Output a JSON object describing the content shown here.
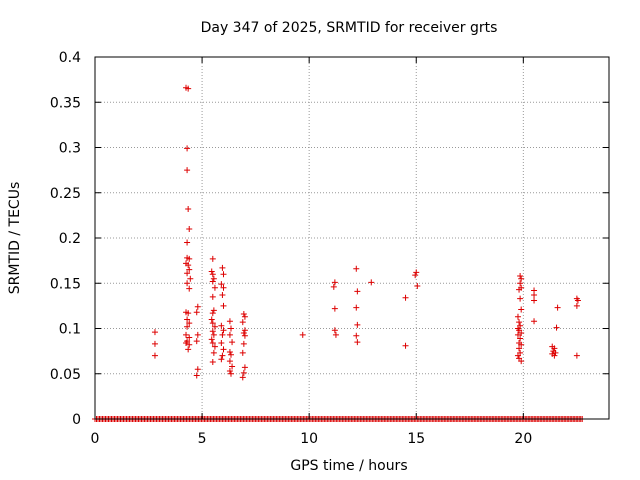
{
  "chart_data": {
    "type": "scatter",
    "title": "Day 347 of 2025, SRMTID for receiver grts",
    "xlabel": "GPS time / hours",
    "ylabel": "SRMTID / TECUs",
    "xlim": [
      0,
      24
    ],
    "ylim": [
      0,
      0.4
    ],
    "xticks": [
      0,
      5,
      10,
      15,
      20
    ],
    "yticks": [
      0,
      0.05,
      0.1,
      0.15,
      0.2,
      0.25,
      0.3,
      0.35,
      0.4
    ],
    "xtick_labels": [
      "0",
      "5",
      "10",
      "15",
      "20"
    ],
    "ytick_labels": [
      "0",
      "0.05",
      "0.1",
      "0.15",
      "0.2",
      "0.25",
      "0.3",
      "0.35",
      "0.4"
    ],
    "grid": true,
    "marker": "+",
    "color": "#dd0000",
    "baseline": {
      "y": 0,
      "x_start": 0,
      "x_end": 22.8,
      "step": 0.07
    },
    "series": [
      {
        "name": "SRMTID",
        "points": [
          [
            2.8,
            0.096
          ],
          [
            2.8,
            0.083
          ],
          [
            2.8,
            0.07
          ],
          [
            4.25,
            0.366
          ],
          [
            4.35,
            0.365
          ],
          [
            4.3,
            0.299
          ],
          [
            4.3,
            0.275
          ],
          [
            4.35,
            0.232
          ],
          [
            4.4,
            0.21
          ],
          [
            4.3,
            0.195
          ],
          [
            4.3,
            0.178
          ],
          [
            4.4,
            0.177
          ],
          [
            4.25,
            0.172
          ],
          [
            4.35,
            0.17
          ],
          [
            4.4,
            0.165
          ],
          [
            4.3,
            0.161
          ],
          [
            4.45,
            0.155
          ],
          [
            4.3,
            0.15
          ],
          [
            4.4,
            0.144
          ],
          [
            4.25,
            0.118
          ],
          [
            4.35,
            0.117
          ],
          [
            4.3,
            0.11
          ],
          [
            4.4,
            0.106
          ],
          [
            4.3,
            0.102
          ],
          [
            4.25,
            0.093
          ],
          [
            4.4,
            0.09
          ],
          [
            4.3,
            0.086
          ],
          [
            4.25,
            0.084
          ],
          [
            4.4,
            0.082
          ],
          [
            4.35,
            0.077
          ],
          [
            4.8,
            0.124
          ],
          [
            4.75,
            0.118
          ],
          [
            4.8,
            0.093
          ],
          [
            4.75,
            0.086
          ],
          [
            4.8,
            0.055
          ],
          [
            4.75,
            0.048
          ],
          [
            5.5,
            0.177
          ],
          [
            5.45,
            0.163
          ],
          [
            5.5,
            0.16
          ],
          [
            5.55,
            0.155
          ],
          [
            5.5,
            0.152
          ],
          [
            5.6,
            0.145
          ],
          [
            5.5,
            0.135
          ],
          [
            5.55,
            0.12
          ],
          [
            5.5,
            0.117
          ],
          [
            5.45,
            0.11
          ],
          [
            5.5,
            0.106
          ],
          [
            5.6,
            0.102
          ],
          [
            5.5,
            0.097
          ],
          [
            5.55,
            0.093
          ],
          [
            5.45,
            0.088
          ],
          [
            5.5,
            0.084
          ],
          [
            5.6,
            0.08
          ],
          [
            5.55,
            0.073
          ],
          [
            5.5,
            0.063
          ],
          [
            5.95,
            0.167
          ],
          [
            6.0,
            0.16
          ],
          [
            5.9,
            0.149
          ],
          [
            6.0,
            0.145
          ],
          [
            5.95,
            0.137
          ],
          [
            6.0,
            0.125
          ],
          [
            5.9,
            0.103
          ],
          [
            6.0,
            0.098
          ],
          [
            5.95,
            0.093
          ],
          [
            5.9,
            0.084
          ],
          [
            6.0,
            0.077
          ],
          [
            5.95,
            0.07
          ],
          [
            5.9,
            0.066
          ],
          [
            6.3,
            0.108
          ],
          [
            6.35,
            0.1
          ],
          [
            6.3,
            0.093
          ],
          [
            6.4,
            0.085
          ],
          [
            6.3,
            0.074
          ],
          [
            6.35,
            0.071
          ],
          [
            6.3,
            0.064
          ],
          [
            6.4,
            0.058
          ],
          [
            6.3,
            0.053
          ],
          [
            6.35,
            0.05
          ],
          [
            6.95,
            0.116
          ],
          [
            7.0,
            0.113
          ],
          [
            6.9,
            0.107
          ],
          [
            7.0,
            0.098
          ],
          [
            6.95,
            0.095
          ],
          [
            7.0,
            0.092
          ],
          [
            6.95,
            0.083
          ],
          [
            6.9,
            0.073
          ],
          [
            7.0,
            0.057
          ],
          [
            6.95,
            0.051
          ],
          [
            6.9,
            0.046
          ],
          [
            9.7,
            0.093
          ],
          [
            11.2,
            0.151
          ],
          [
            11.15,
            0.146
          ],
          [
            11.2,
            0.122
          ],
          [
            11.2,
            0.098
          ],
          [
            11.25,
            0.093
          ],
          [
            12.2,
            0.166
          ],
          [
            12.25,
            0.141
          ],
          [
            12.2,
            0.123
          ],
          [
            12.25,
            0.104
          ],
          [
            12.2,
            0.092
          ],
          [
            12.25,
            0.085
          ],
          [
            12.9,
            0.151
          ],
          [
            14.5,
            0.134
          ],
          [
            14.5,
            0.081
          ],
          [
            15.0,
            0.162
          ],
          [
            14.95,
            0.159
          ],
          [
            15.05,
            0.147
          ],
          [
            19.85,
            0.158
          ],
          [
            19.9,
            0.155
          ],
          [
            19.85,
            0.15
          ],
          [
            19.9,
            0.145
          ],
          [
            19.8,
            0.143
          ],
          [
            19.85,
            0.133
          ],
          [
            19.9,
            0.121
          ],
          [
            19.75,
            0.113
          ],
          [
            19.8,
            0.107
          ],
          [
            19.85,
            0.103
          ],
          [
            19.75,
            0.1
          ],
          [
            19.8,
            0.098
          ],
          [
            19.9,
            0.095
          ],
          [
            19.75,
            0.093
          ],
          [
            19.85,
            0.089
          ],
          [
            19.8,
            0.084
          ],
          [
            19.9,
            0.082
          ],
          [
            19.8,
            0.078
          ],
          [
            19.85,
            0.073
          ],
          [
            19.75,
            0.07
          ],
          [
            19.8,
            0.067
          ],
          [
            19.9,
            0.064
          ],
          [
            20.5,
            0.142
          ],
          [
            20.5,
            0.137
          ],
          [
            20.5,
            0.131
          ],
          [
            20.5,
            0.108
          ],
          [
            21.35,
            0.08
          ],
          [
            21.45,
            0.078
          ],
          [
            21.4,
            0.075
          ],
          [
            21.5,
            0.073
          ],
          [
            21.35,
            0.072
          ],
          [
            21.45,
            0.07
          ],
          [
            21.6,
            0.123
          ],
          [
            21.55,
            0.101
          ],
          [
            22.5,
            0.133
          ],
          [
            22.55,
            0.131
          ],
          [
            22.5,
            0.125
          ],
          [
            22.5,
            0.07
          ]
        ]
      }
    ]
  }
}
